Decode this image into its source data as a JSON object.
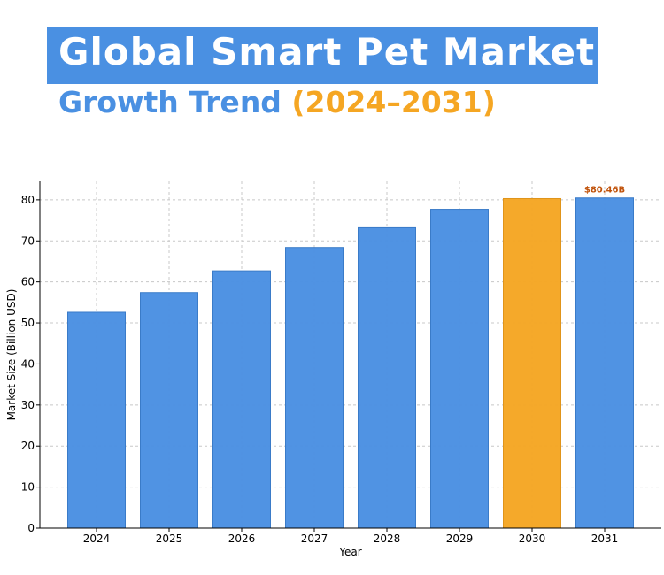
{
  "header": {
    "title": "Global Smart Pet Market",
    "subtitle_main": "Growth Trend ",
    "subtitle_years": "(2024–2031)"
  },
  "colors": {
    "bar": "#4a90e2",
    "highlight": "#f5a623",
    "label": "#c0520a",
    "title_band": "#4a90e2"
  },
  "chart_data": {
    "type": "bar",
    "categories": [
      "2024",
      "2025",
      "2026",
      "2027",
      "2028",
      "2029",
      "2030",
      "2031"
    ],
    "values": [
      52.6,
      57.4,
      62.7,
      68.4,
      73.2,
      77.7,
      80.3,
      80.46
    ],
    "highlight_category": "2030",
    "xlabel": "Year",
    "ylabel": "Market Size (Billion USD)",
    "ylim": [
      0,
      84.5
    ],
    "yticks": [
      0,
      10,
      20,
      30,
      40,
      50,
      60,
      70,
      80
    ],
    "grid": true,
    "annotations": [
      {
        "category": "2031",
        "text": "$80.46B"
      }
    ]
  }
}
